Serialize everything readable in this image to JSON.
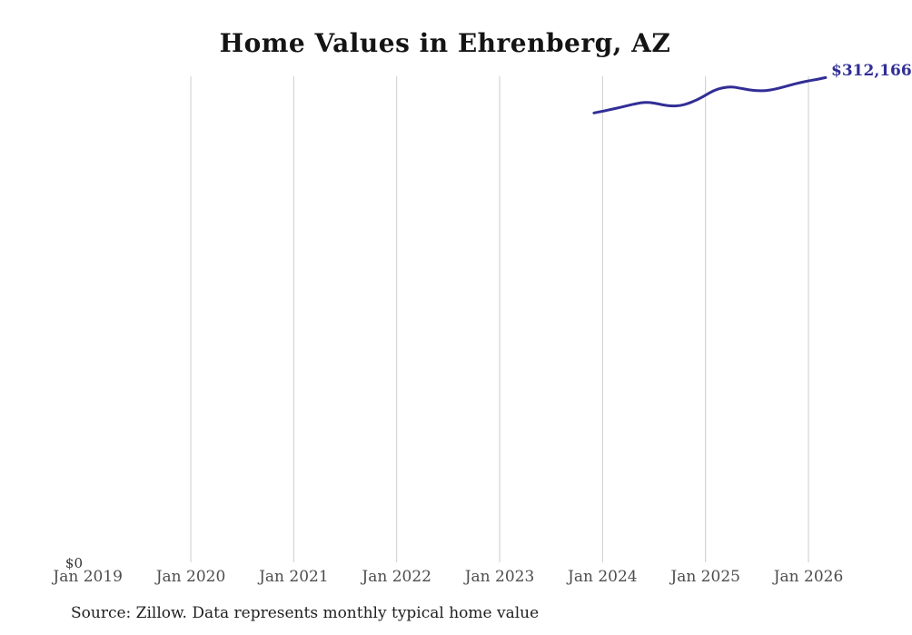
{
  "page": {
    "background": "#ffffff"
  },
  "chart_data": {
    "type": "line",
    "title": "Home Values in Ehrenberg, AZ",
    "xlabel": "",
    "ylabel": "",
    "x_tick_labels": [
      "Jan 2019",
      "Jan 2020",
      "Jan 2021",
      "Jan 2022",
      "Jan 2023",
      "Jan 2024",
      "Jan 2025",
      "Jan 2026"
    ],
    "y_zero_label": "$0",
    "end_label": "$312,166",
    "ylim": [
      0,
      313000
    ],
    "grid": "vertical-year-gridlines-only",
    "gridline_color": "#cccccc",
    "line_color": "#312e96",
    "series": [
      {
        "x": [
          "2023-12",
          "2024-01",
          "2024-02",
          "2024-03",
          "2024-04",
          "2024-05",
          "2024-06",
          "2024-07",
          "2024-08",
          "2024-09",
          "2024-10",
          "2024-11",
          "2024-12",
          "2025-01",
          "2025-02",
          "2025-03",
          "2025-04",
          "2025-05",
          "2025-06",
          "2025-07",
          "2025-08",
          "2025-09",
          "2025-10",
          "2025-11",
          "2025-12",
          "2026-01",
          "2026-02",
          "2026-03"
        ],
        "values": [
          289400,
          290500,
          291700,
          292900,
          294300,
          295500,
          296400,
          295800,
          294600,
          293800,
          294000,
          295500,
          297800,
          300800,
          304000,
          305700,
          306300,
          305400,
          304300,
          303700,
          303700,
          304600,
          306000,
          307500,
          308900,
          310100,
          311000,
          312166
        ]
      }
    ]
  },
  "footer": {
    "source": "Source: Zillow. Data represents monthly typical home value"
  }
}
